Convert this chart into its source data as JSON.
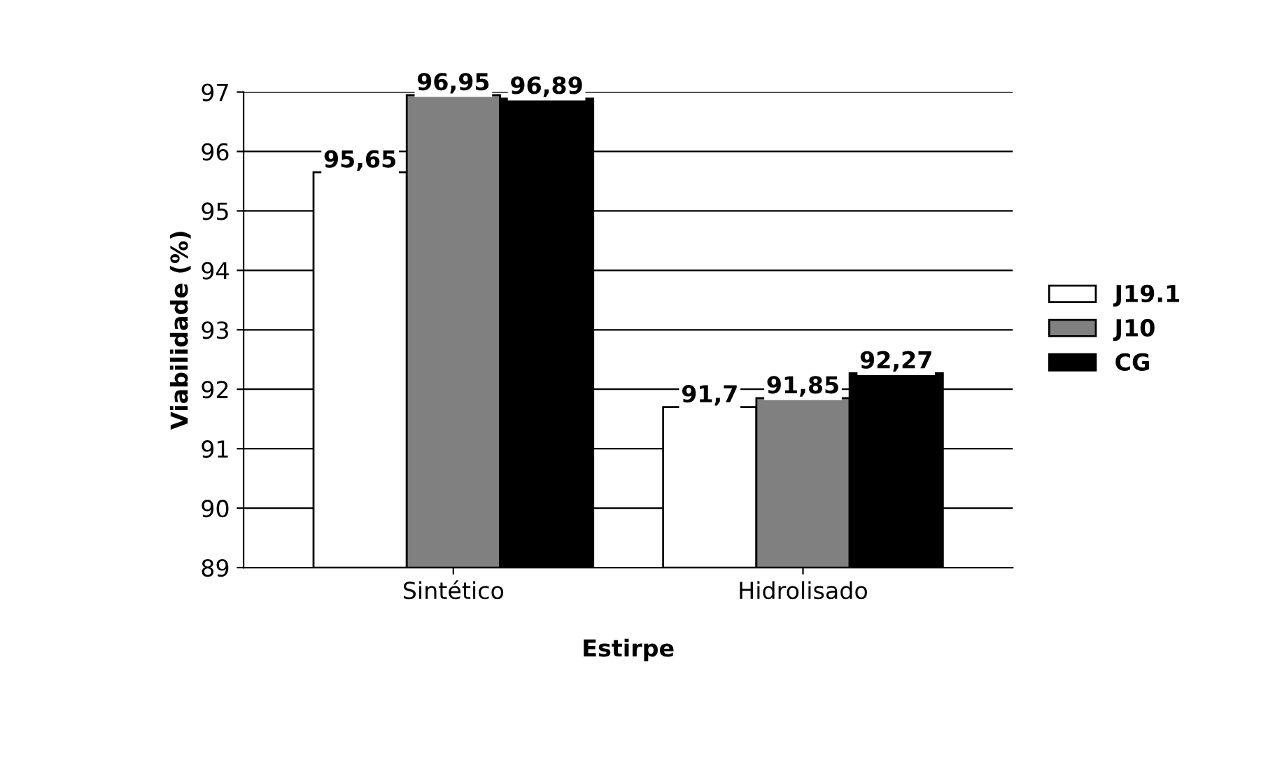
{
  "chart_data": {
    "type": "bar",
    "xlabel": "Estirpe",
    "ylabel": "Viabilidade (%)",
    "categories": [
      "Sintético",
      "Hidrolisado"
    ],
    "series": [
      {
        "name": "J19.1",
        "color": "#ffffff",
        "values": [
          95.65,
          91.7
        ],
        "value_labels": [
          "95,65",
          "91,7"
        ]
      },
      {
        "name": "J10",
        "color": "#808080",
        "values": [
          96.95,
          91.85
        ],
        "value_labels": [
          "96,95",
          "91,85"
        ]
      },
      {
        "name": "CG",
        "color": "#000000",
        "values": [
          96.89,
          92.27
        ],
        "value_labels": [
          "96,89",
          "92,27"
        ]
      }
    ],
    "ylim": [
      89,
      97
    ],
    "yticks": [
      89,
      90,
      91,
      92,
      93,
      94,
      95,
      96,
      97
    ],
    "grid": "y",
    "legend": "right"
  }
}
